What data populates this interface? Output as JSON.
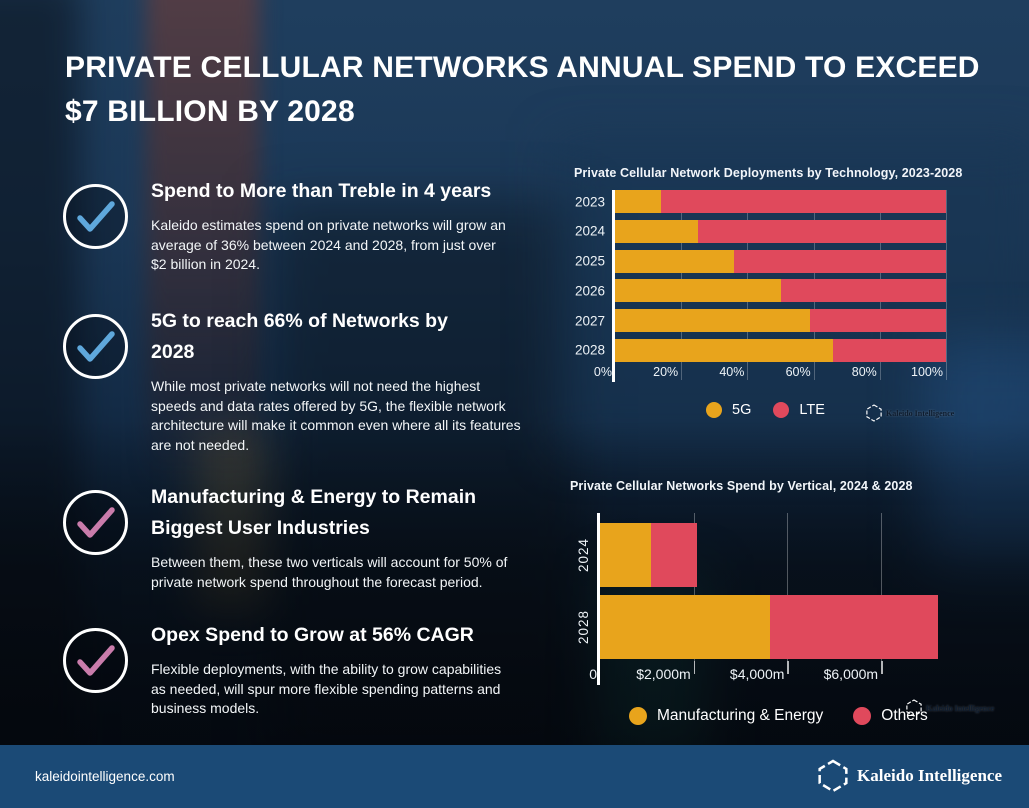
{
  "header": {
    "title": "PRIVATE CELLULAR NETWORKS ANNUAL SPEND TO EXCEED\n$7 BILLION BY 2028"
  },
  "insights": [
    {
      "title": "Spend to More than Treble in 4 years",
      "body": "Kaleido estimates spend on private networks will grow an\naverage of 36% between 2024 and 2028, from just over\n$2 billion in 2024.",
      "check_color": "#5FA8DC"
    },
    {
      "title": "5G to reach 66% of Networks by\n2028",
      "body": "While most private networks will not need the highest\nspeeds and data rates offered by 5G, the flexible network\narchitecture will make it common even where all its features\nare not needed.",
      "check_color": "#5FA8DC"
    },
    {
      "title": "Manufacturing & Energy to Remain\nBiggest User Industries",
      "body": "Between them, these two verticals will account for 50% of\nprivate network spend throughout the forecast period.",
      "check_color": "#C97CAB"
    },
    {
      "title": "Opex Spend to Grow at 56% CAGR",
      "body": "Flexible deployments, with the ability to grow capabilities\nas needed, will spur more flexible spending patterns and\nbusiness models.",
      "check_color": "#C97CAB"
    }
  ],
  "chart_data": [
    {
      "type": "bar",
      "orientation": "horizontal-stacked",
      "title": "Private Cellular Network Deployments by Technology, 2023-2028",
      "categories": [
        "2023",
        "2024",
        "2025",
        "2026",
        "2027",
        "2028"
      ],
      "series": [
        {
          "name": "5G",
          "color": "#E8A41C",
          "values": [
            14,
            25,
            36,
            50,
            59,
            66
          ]
        },
        {
          "name": "LTE",
          "color": "#E0495C",
          "values": [
            86,
            75,
            64,
            50,
            41,
            34
          ]
        }
      ],
      "unit": "%",
      "xlim": [
        0,
        100
      ],
      "x_ticks": [
        {
          "label": "0%",
          "value": 0
        },
        {
          "label": "20%",
          "value": 20
        },
        {
          "label": "40%",
          "value": 40
        },
        {
          "label": "60%",
          "value": 60
        },
        {
          "label": "80%",
          "value": 80
        },
        {
          "label": "100%",
          "value": 100
        }
      ],
      "grid_values": [
        20,
        40,
        60,
        80,
        100
      ],
      "tick_marks": false,
      "legend_position": "bottom"
    },
    {
      "type": "bar",
      "orientation": "horizontal-stacked",
      "title": "Private Cellular Networks Spend by Vertical, 2024 & 2028",
      "categories": [
        "2024",
        "2028"
      ],
      "series": [
        {
          "name": "Manufacturing & Energy",
          "color": "#E8A41C",
          "values": [
            1080,
            3630
          ]
        },
        {
          "name": "Others",
          "color": "#E0495C",
          "values": [
            1000,
            3580
          ]
        }
      ],
      "unit": "$m",
      "xlim": [
        0,
        7940
      ],
      "x_ticks": [
        {
          "label": "0",
          "value": 0
        },
        {
          "label": "$2,000m",
          "value": 2000
        },
        {
          "label": "$4,000m",
          "value": 4000
        },
        {
          "label": "$6,000m",
          "value": 6000
        }
      ],
      "grid_values": [
        2000,
        4000,
        6000
      ],
      "tick_marks": true,
      "legend_position": "bottom"
    }
  ],
  "watermark": {
    "label": "Kaleido Intelligence"
  },
  "footer": {
    "url": "kaleidointelligence.com",
    "brand": "Kaleido Intelligence"
  }
}
